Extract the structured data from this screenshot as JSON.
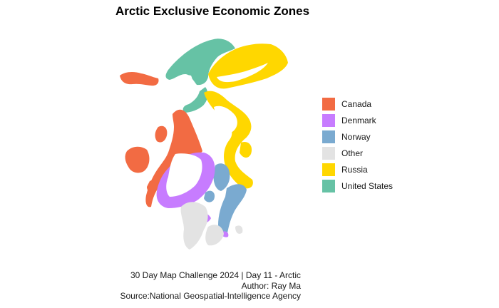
{
  "title": "Arctic Exclusive Economic Zones",
  "legend": [
    {
      "key": "canada",
      "label": "Canada",
      "color": "#F26B43"
    },
    {
      "key": "denmark",
      "label": "Denmark",
      "color": "#C77CFF"
    },
    {
      "key": "norway",
      "label": "Norway",
      "color": "#7AAAD0"
    },
    {
      "key": "other",
      "label": "Other",
      "color": "#E3E3E3"
    },
    {
      "key": "russia",
      "label": "Russia",
      "color": "#FFD700"
    },
    {
      "key": "united_states",
      "label": "United States",
      "color": "#66C2A5"
    }
  ],
  "caption": {
    "line1": "30 Day Map Challenge 2024 | Day 11 - Arctic",
    "line2": "Author: Ray Ma",
    "line3": "Source:National Geospatial-Intelligence Agency"
  }
}
